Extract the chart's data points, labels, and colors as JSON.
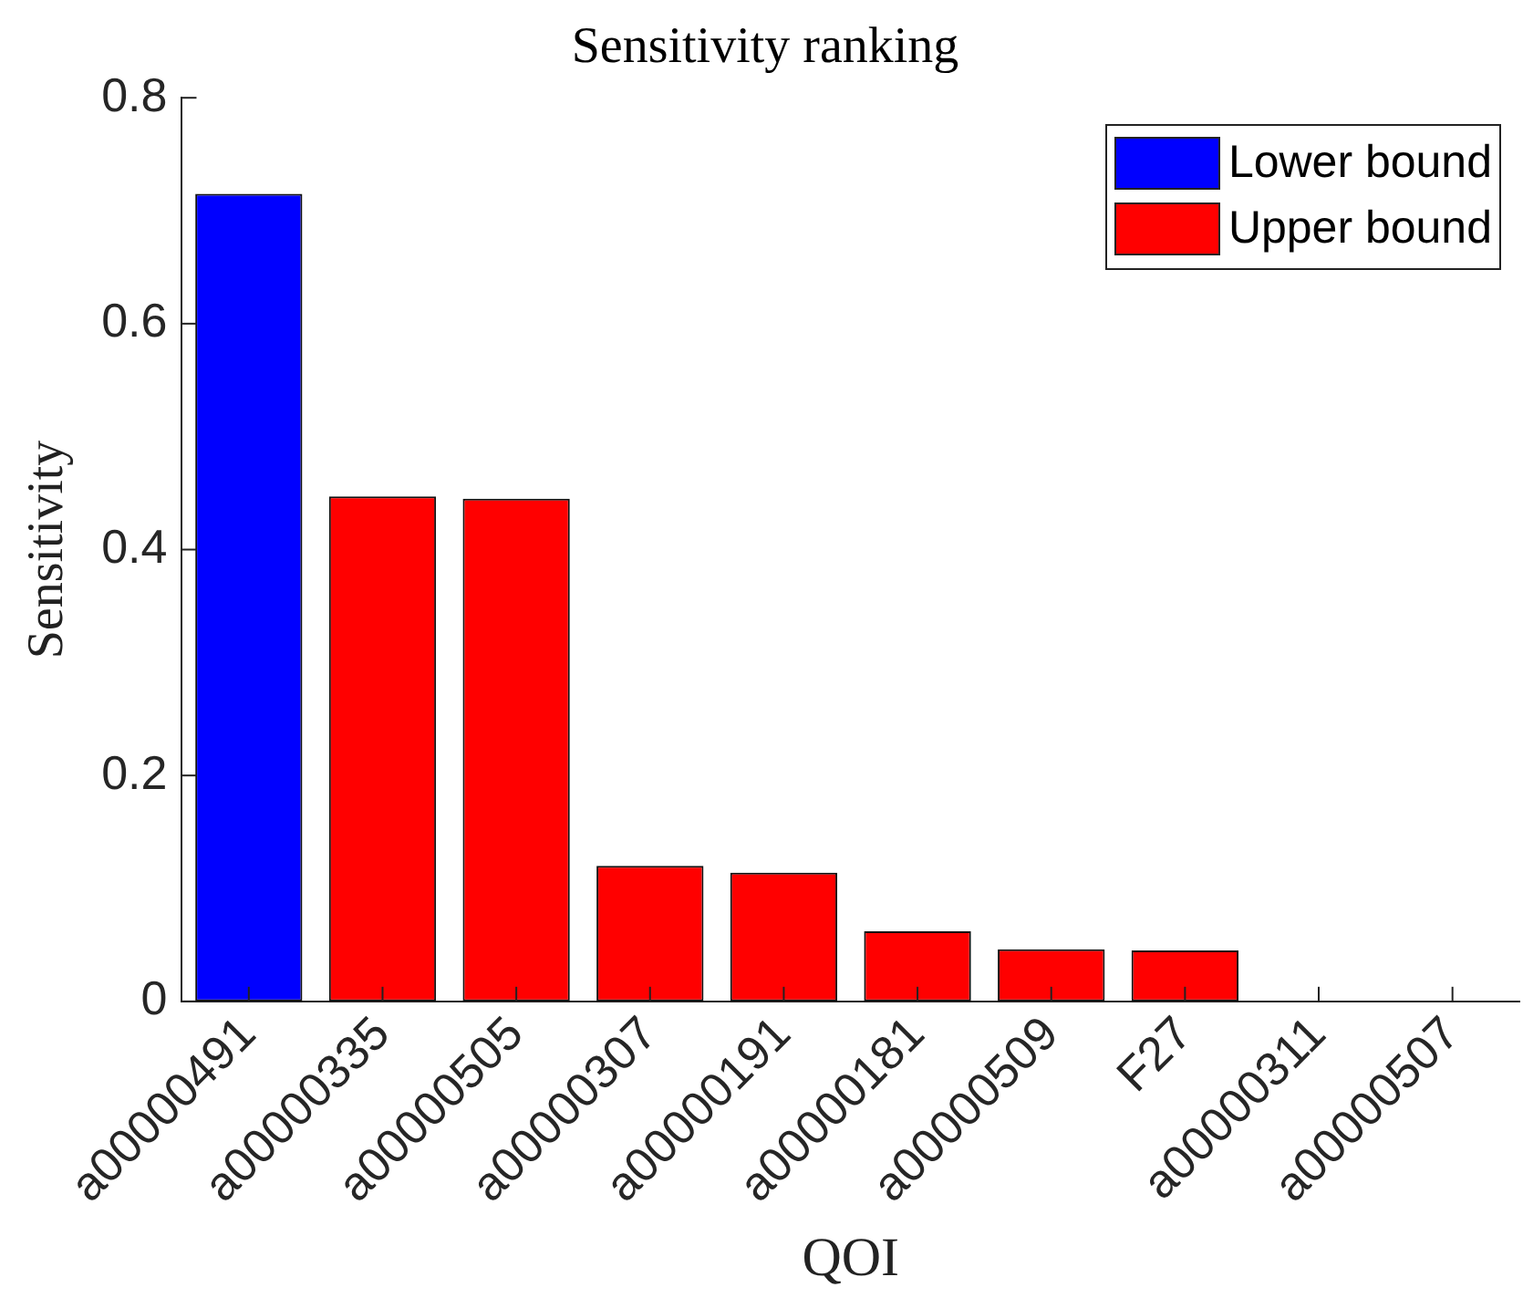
{
  "chart_data": {
    "type": "bar",
    "title": "Sensitivity ranking",
    "xlabel": "QOI",
    "ylabel": "Sensitivity",
    "categories": [
      "a00000491",
      "a00000335",
      "a00000505",
      "a00000307",
      "a00000191",
      "a00000181",
      "a00000509",
      "F27",
      "a00000311",
      "a00000507"
    ],
    "series": [
      {
        "name": "Lower bound",
        "color": "#0000ff",
        "values": [
          0.715,
          null,
          null,
          null,
          null,
          null,
          null,
          null,
          null,
          null
        ]
      },
      {
        "name": "Upper bound",
        "color": "#ff0000",
        "values": [
          null,
          0.447,
          0.445,
          0.12,
          0.114,
          0.062,
          0.046,
          0.045,
          0,
          0
        ]
      }
    ],
    "ylim": [
      0,
      0.8
    ],
    "yticks": [
      0,
      0.2,
      0.4,
      0.6,
      0.8
    ],
    "grid": false,
    "legend": "top right"
  }
}
